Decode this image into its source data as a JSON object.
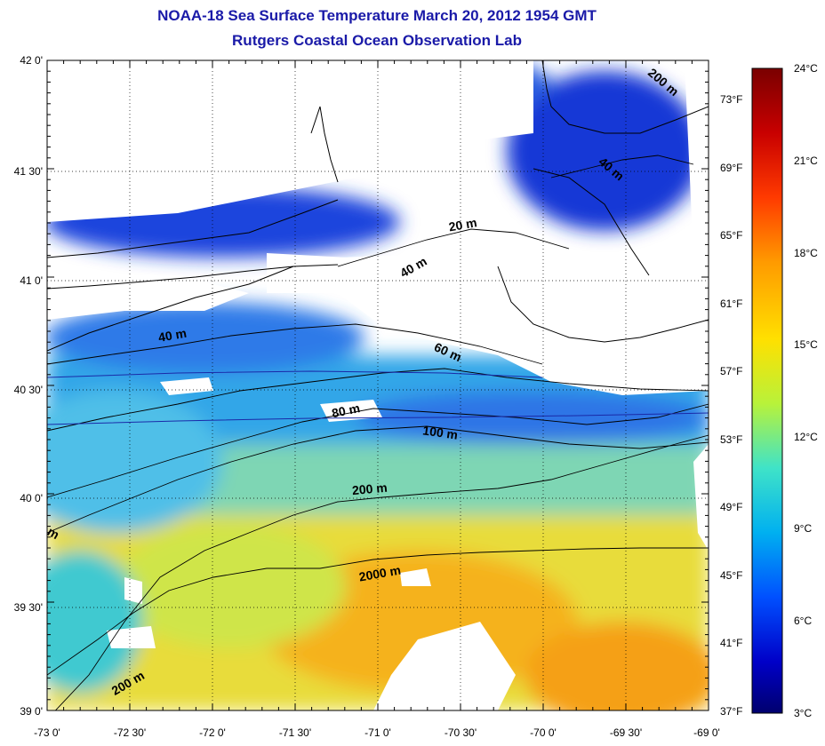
{
  "title": {
    "line1": "NOAA-18 Sea Surface Temperature March 20, 2012 1954 GMT",
    "line2": "Rutgers Coastal Ocean Observation Lab"
  },
  "map": {
    "lat_ticks": [
      "42 0'",
      "41 30'",
      "41 0'",
      "40 30'",
      "40 0'",
      "39 30'",
      "39 0'"
    ],
    "lon_ticks": [
      "-73 0'",
      "-72 30'",
      "-72 0'",
      "-71 30'",
      "-71 0'",
      "-70 30'",
      "-70 0'",
      "-69 30'",
      "-69 0'"
    ],
    "fahrenheit_ticks": [
      "73°F",
      "69°F",
      "65°F",
      "61°F",
      "57°F",
      "53°F",
      "49°F",
      "45°F",
      "41°F",
      "37°F"
    ],
    "contour_labels": [
      "200 m",
      "40 m",
      "20 m",
      "40 m",
      "40 m",
      "60 m",
      "80 m",
      "100 m",
      "200 m",
      "2000 m",
      "200 m",
      "m"
    ]
  },
  "colorbar": {
    "ticks": [
      "24°C",
      "21°C",
      "18°C",
      "15°C",
      "12°C",
      "9°C",
      "6°C",
      "3°C"
    ],
    "colors": [
      "#7a0000",
      "#c80000",
      "#ff3a00",
      "#ff9a00",
      "#ffe000",
      "#b8f23a",
      "#3fe3c8",
      "#00b0f0",
      "#0050ff",
      "#0000c8",
      "#00006e"
    ]
  }
}
